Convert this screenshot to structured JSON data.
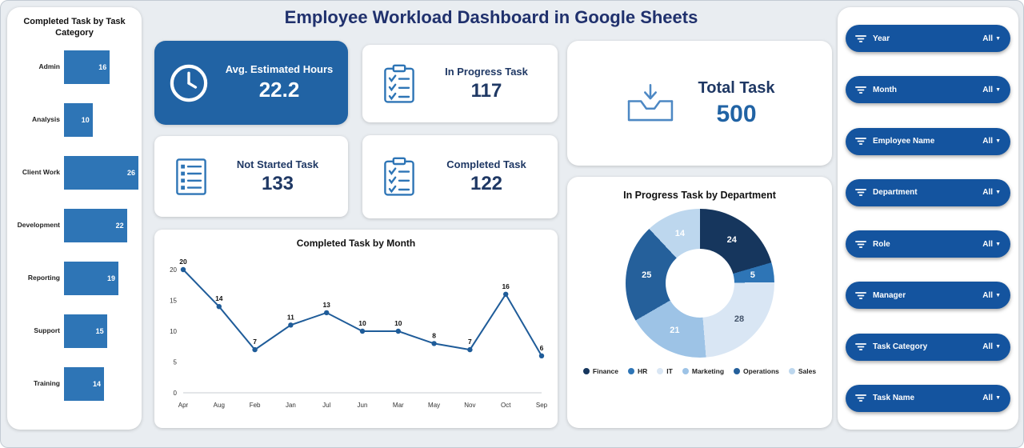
{
  "title": "Employee Workload Dashboard in Google Sheets",
  "kpis": {
    "avg_hours": {
      "label": "Avg. Estimated Hours",
      "value": "22.2"
    },
    "in_progress": {
      "label": "In Progress Task",
      "value": "117"
    },
    "not_started": {
      "label": "Not Started Task",
      "value": "133"
    },
    "completed": {
      "label": "Completed Task",
      "value": "122"
    },
    "total": {
      "label": "Total Task",
      "value": "500"
    }
  },
  "chart_data": [
    {
      "id": "category_bar",
      "type": "bar",
      "orientation": "horizontal",
      "title": "Completed Task by Task Category",
      "categories": [
        "Admin",
        "Analysis",
        "Client Work",
        "Development",
        "Reporting",
        "Support",
        "Training"
      ],
      "values": [
        16,
        10,
        26,
        22,
        19,
        15,
        14
      ],
      "xlim": [
        0,
        26
      ],
      "bar_color": "#2e75b6",
      "data_labels": true
    },
    {
      "id": "monthly_line",
      "type": "line",
      "title": "Completed Task by Month",
      "categories": [
        "Apr",
        "Aug",
        "Feb",
        "Jan",
        "Jul",
        "Jun",
        "Mar",
        "May",
        "Nov",
        "Oct",
        "Sep"
      ],
      "values": [
        20,
        14,
        7,
        11,
        13,
        10,
        10,
        8,
        7,
        16,
        6
      ],
      "ylim": [
        0,
        20
      ],
      "yticks": [
        0,
        5,
        10,
        15,
        20
      ],
      "line_color": "#1f5c99",
      "grid": false,
      "data_labels": true,
      "legend_position": "none"
    },
    {
      "id": "dept_donut",
      "type": "pie",
      "donut": true,
      "title": "In Progress Task by Department",
      "labels": [
        "Finance",
        "HR",
        "IT",
        "Marketing",
        "Operations",
        "Sales"
      ],
      "values": [
        24,
        5,
        28,
        21,
        25,
        14
      ],
      "colors": [
        "#16365d",
        "#2e75b6",
        "#d9e6f4",
        "#9dc3e6",
        "#25609b",
        "#bdd7ee"
      ],
      "label_colors": [
        "#ffffff",
        "#ffffff",
        "#44546a",
        "#ffffff",
        "#ffffff",
        "#ffffff"
      ],
      "legend_position": "bottom"
    }
  ],
  "filters": {
    "items": [
      {
        "label": "Year",
        "value": "All"
      },
      {
        "label": "Month",
        "value": "All"
      },
      {
        "label": "Employee Name",
        "value": "All"
      },
      {
        "label": "Department",
        "value": "All"
      },
      {
        "label": "Role",
        "value": "All"
      },
      {
        "label": "Manager",
        "value": "All"
      },
      {
        "label": "Task Category",
        "value": "All"
      },
      {
        "label": "Task Name",
        "value": "All"
      }
    ]
  },
  "colors": {
    "accent_blue": "#2163a4",
    "pill_blue": "#14549f",
    "bar_blue": "#2e75b6",
    "title_navy": "#20316d",
    "kpi_text_navy": "#1f3864",
    "background": "#e9edf1"
  },
  "icons": {
    "kpi_avg": "clock-icon",
    "kpi_in_progress": "clipboard-check-icon",
    "kpi_not_started": "list-icon",
    "kpi_completed": "clipboard-check-icon",
    "total": "inbox-arrow-down-icon",
    "filter": "filter-icon"
  }
}
